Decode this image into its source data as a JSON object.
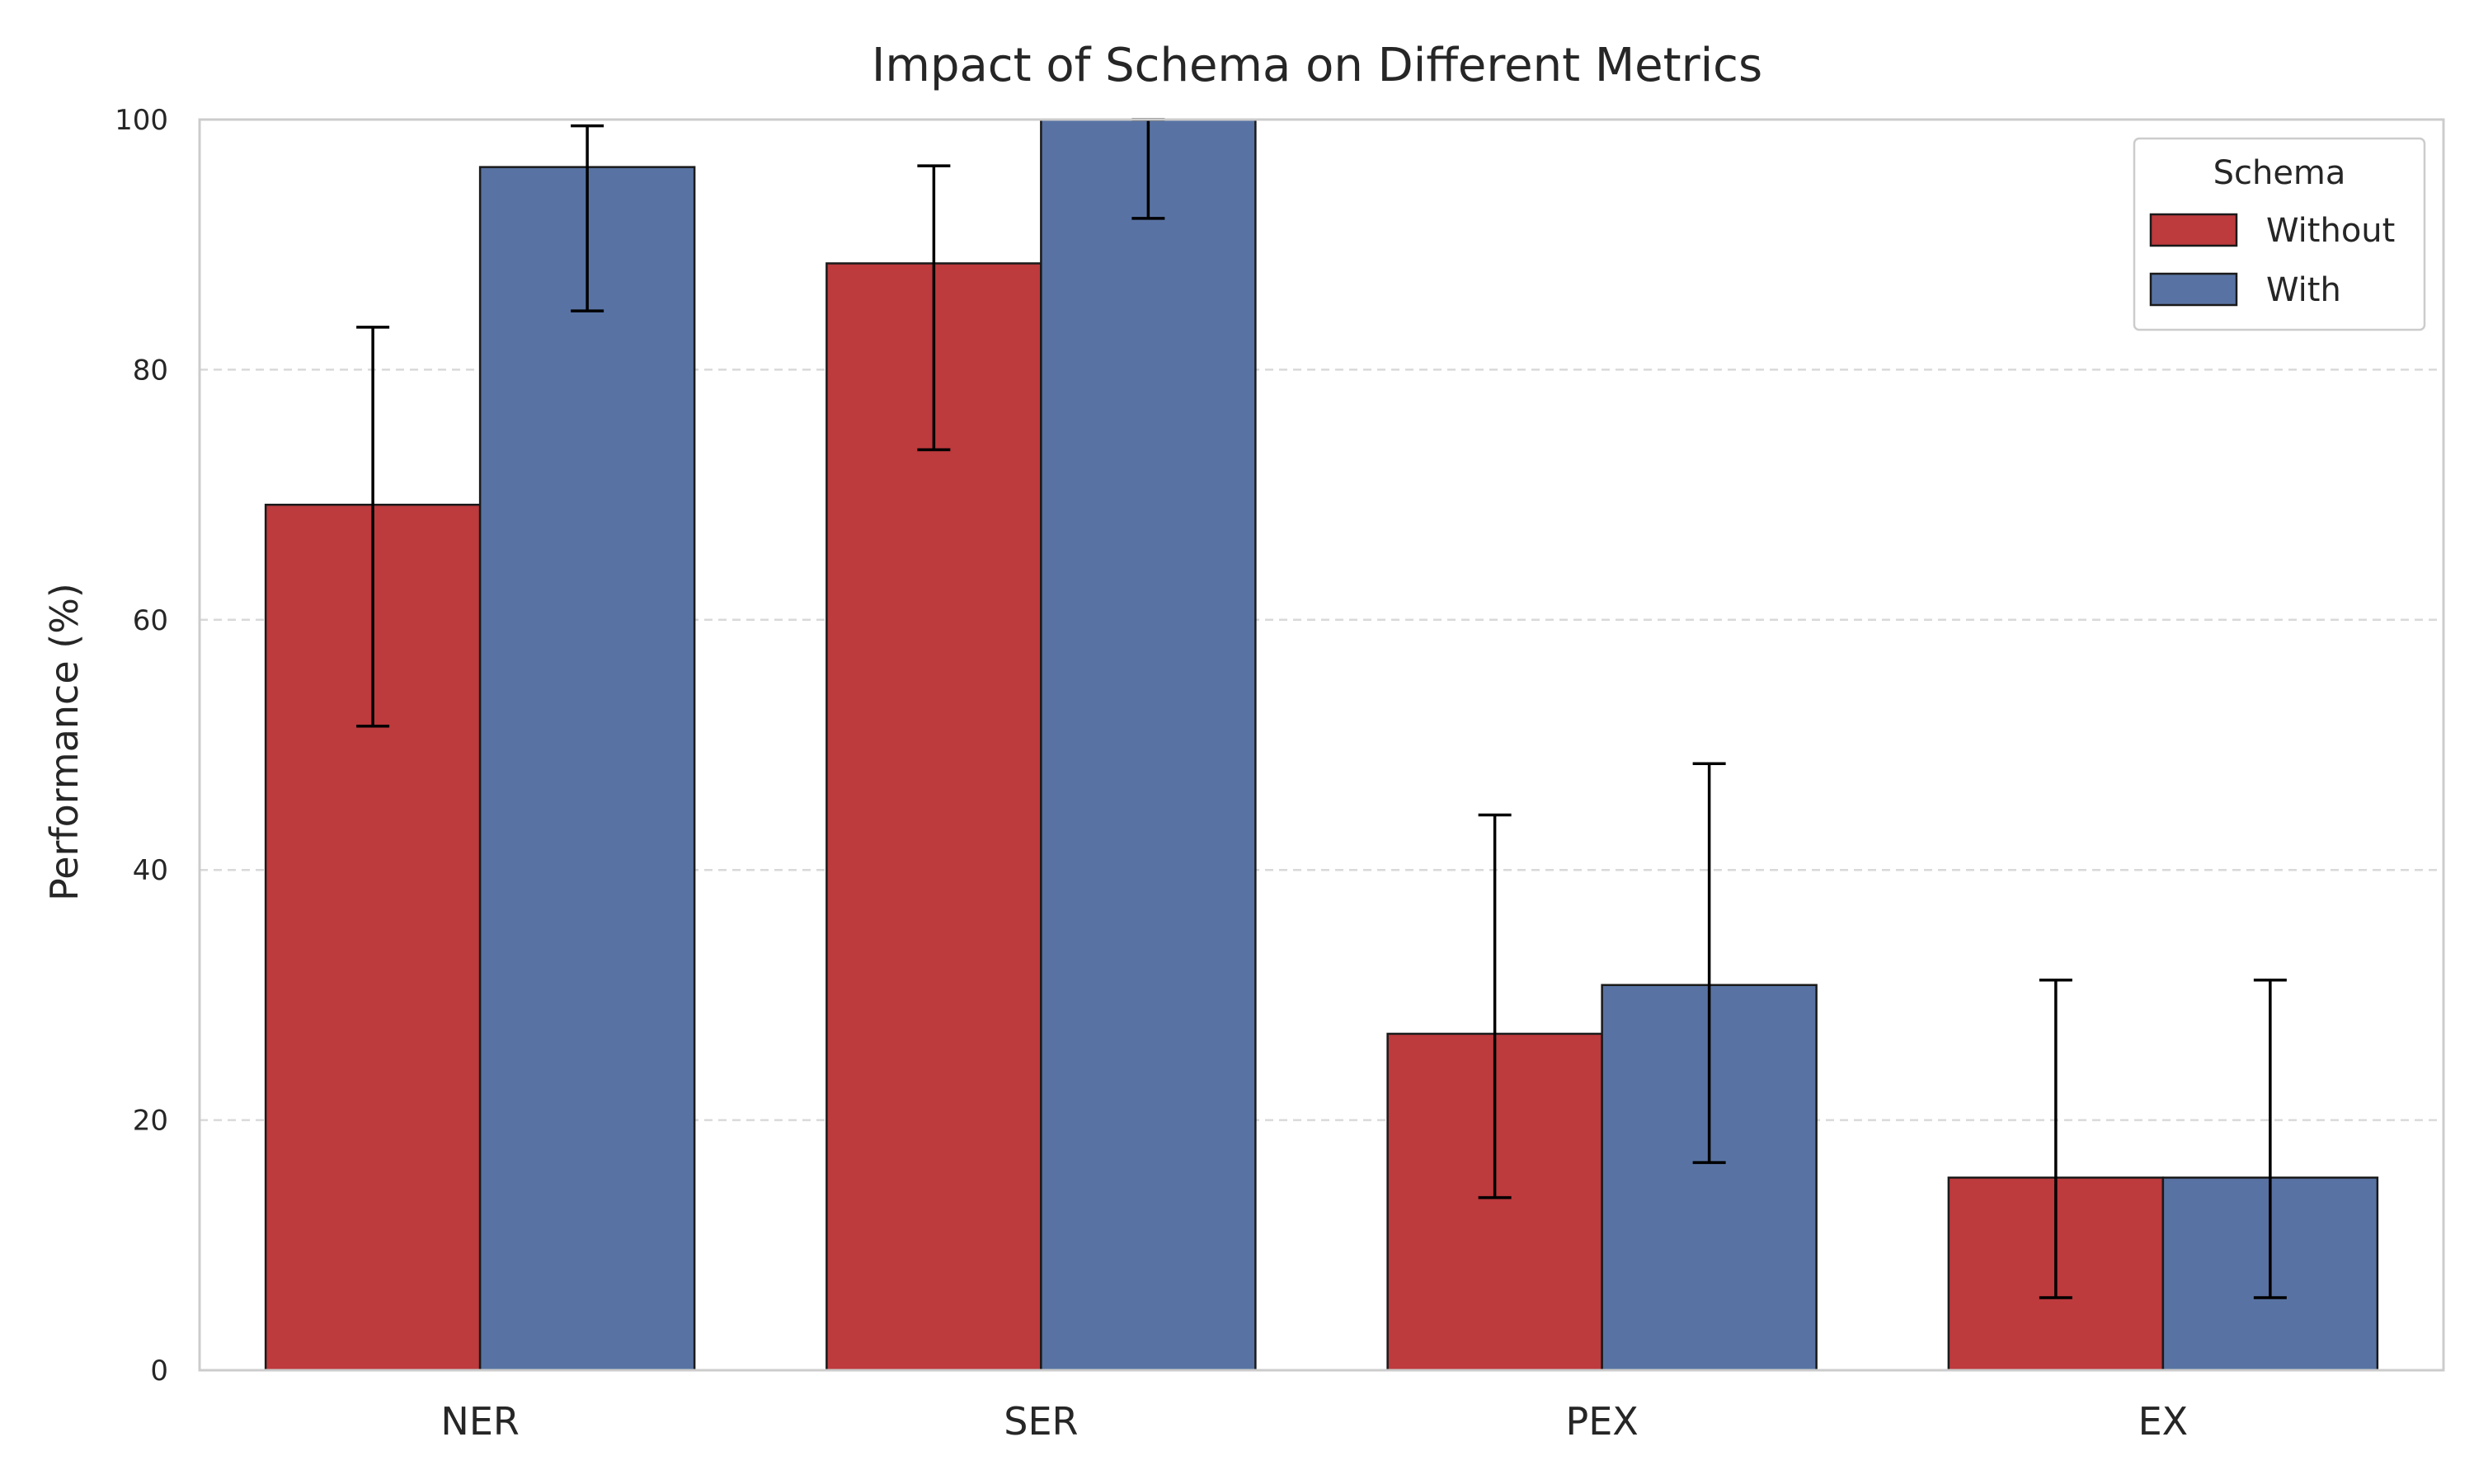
{
  "chart_data": {
    "type": "bar",
    "title": "Impact of Schema on Different Metrics",
    "xlabel": "",
    "ylabel": "Performance (%)",
    "ylim": [
      0,
      100
    ],
    "yticks": [
      "0",
      "20",
      "40",
      "60",
      "80",
      "100"
    ],
    "categories": [
      "NER",
      "SER",
      "PEX",
      "EX"
    ],
    "grid": "horizontal-dashed",
    "legend": {
      "title": "Schema",
      "placement": "top-right"
    },
    "series": [
      {
        "name": "Without",
        "color": "#bd3a3d",
        "values": [
          69.2,
          88.5,
          26.9,
          15.4
        ],
        "error_low": [
          51.5,
          73.6,
          13.8,
          5.8
        ],
        "error_high": [
          83.4,
          96.3,
          44.4,
          31.2
        ]
      },
      {
        "name": "With",
        "color": "#5873a3",
        "values": [
          96.2,
          100,
          30.8,
          15.4
        ],
        "error_low": [
          84.7,
          92.1,
          16.6,
          5.8
        ],
        "error_high": [
          99.5,
          100,
          48.5,
          31.2
        ]
      }
    ]
  }
}
